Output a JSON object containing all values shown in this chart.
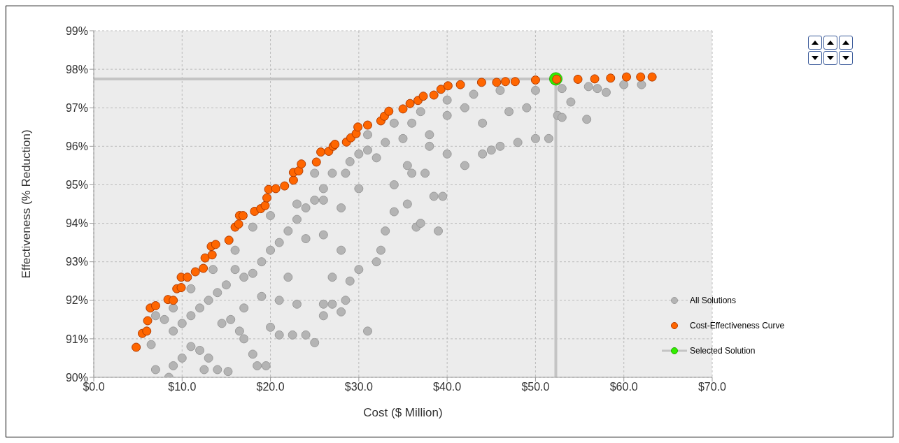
{
  "chart_data": {
    "type": "scatter",
    "xlabel": "Cost ($ Million)",
    "ylabel": "Effectiveness (% Reduction)",
    "xlim": [
      0,
      70
    ],
    "xticks": [
      {
        "value": 0,
        "label": "$0.0"
      },
      {
        "value": 10,
        "label": "$10.0"
      },
      {
        "value": 20,
        "label": "$20.0"
      },
      {
        "value": 30,
        "label": "$30.0"
      },
      {
        "value": 40,
        "label": "$40.0"
      },
      {
        "value": 50,
        "label": "$50.0"
      },
      {
        "value": 60,
        "label": "$60.0"
      },
      {
        "value": 70,
        "label": "$70.0"
      }
    ],
    "ylim": [
      90,
      99
    ],
    "yticks": [
      {
        "value": 90,
        "label": "90%"
      },
      {
        "value": 91,
        "label": "91%"
      },
      {
        "value": 92,
        "label": "92%"
      },
      {
        "value": 93,
        "label": "93%"
      },
      {
        "value": 94,
        "label": "94%"
      },
      {
        "value": 95,
        "label": "95%"
      },
      {
        "value": 96,
        "label": "96%"
      },
      {
        "value": 97,
        "label": "97%"
      },
      {
        "value": 98,
        "label": "98%"
      },
      {
        "value": 99,
        "label": "99%"
      }
    ],
    "grid": true,
    "legend": "bottom right",
    "marker": "circle",
    "series": [
      {
        "name": "All Solutions",
        "color": "#b4b4b4",
        "x": [
          7,
          8.5,
          9,
          10,
          11,
          12,
          12.5,
          13,
          14,
          15.2,
          14.5,
          15.5,
          16.5,
          17,
          18,
          18.5,
          19.5,
          20,
          21,
          22.5,
          24,
          25,
          26,
          27,
          28,
          31,
          28.5,
          29,
          28,
          30,
          32,
          32.5,
          33,
          34,
          35.5,
          36.5,
          37,
          39,
          39.5,
          38.5,
          37.5,
          36,
          34,
          35.5,
          38,
          40,
          42,
          44,
          45,
          46,
          48,
          50,
          51.5,
          52.5,
          53,
          55.8,
          54,
          49,
          47,
          44,
          42,
          40,
          38,
          36,
          35,
          33,
          31,
          30,
          29,
          27,
          26,
          25,
          24,
          23,
          22,
          21,
          20,
          19,
          18,
          17,
          16,
          15,
          14,
          13,
          12,
          11,
          10,
          9,
          8,
          7,
          6.5,
          22,
          24,
          26,
          27,
          26,
          23,
          21,
          19,
          17,
          25,
          28,
          30,
          32,
          57,
          60,
          62,
          58,
          56,
          53,
          50,
          46,
          43,
          40,
          37,
          34,
          31,
          28.5,
          26,
          23,
          20,
          18,
          16,
          13.5,
          11,
          9
        ],
        "values": [
          90.2,
          90.0,
          90.3,
          90.5,
          90.8,
          90.7,
          90.2,
          90.5,
          90.2,
          90.15,
          91.4,
          91.5,
          91.2,
          91.0,
          90.6,
          90.3,
          90.3,
          91.3,
          91.1,
          91.1,
          91.1,
          90.9,
          91.6,
          91.9,
          91.7,
          91.2,
          92.0,
          92.5,
          93.3,
          92.8,
          93.0,
          93.3,
          93.8,
          94.3,
          94.5,
          93.9,
          94.0,
          93.8,
          94.7,
          94.7,
          95.3,
          95.3,
          95.0,
          95.5,
          96.3,
          95.8,
          95.5,
          95.8,
          95.9,
          96.0,
          96.1,
          96.2,
          96.2,
          96.8,
          96.75,
          96.7,
          97.15,
          97.0,
          96.9,
          96.6,
          97.0,
          96.8,
          96.0,
          96.6,
          96.2,
          96.1,
          96.3,
          95.8,
          95.6,
          95.3,
          94.9,
          94.6,
          94.4,
          94.1,
          93.8,
          93.5,
          93.3,
          93.0,
          92.7,
          92.6,
          92.8,
          92.4,
          92.2,
          92.0,
          91.8,
          91.6,
          91.4,
          91.2,
          91.5,
          91.6,
          90.85,
          92.6,
          93.6,
          93.7,
          92.6,
          91.9,
          91.9,
          92.0,
          92.1,
          91.8,
          95.3,
          94.4,
          94.9,
          95.7,
          97.5,
          97.6,
          97.6,
          97.4,
          97.55,
          97.5,
          97.45,
          97.45,
          97.35,
          97.2,
          96.9,
          96.6,
          95.9,
          95.3,
          94.6,
          94.5,
          94.2,
          93.9,
          93.3,
          92.8,
          92.3,
          91.8
        ]
      },
      {
        "name": "Cost-Effectiveness Curve",
        "color": "#ff6600",
        "x": [
          4.8,
          5.5,
          6.0,
          6.1,
          6.4,
          7.0,
          8.4,
          9.0,
          9.4,
          9.9,
          9.9,
          10.6,
          11.5,
          12.4,
          12.6,
          13.4,
          13.3,
          13.8,
          15.3,
          16.0,
          16.4,
          16.5,
          16.9,
          18.2,
          18.9,
          19.4,
          19.6,
          19.8,
          20.6,
          21.6,
          22.6,
          22.6,
          23.2,
          23.5,
          25.2,
          25.7,
          26.6,
          27.1,
          27.3,
          28.6,
          29.1,
          29.7,
          29.9,
          31.0,
          32.5,
          32.9,
          33.4,
          35.0,
          35.8,
          36.7,
          37.3,
          38.5,
          39.3,
          40.1,
          41.5,
          43.9,
          45.6,
          46.6,
          47.7,
          50.0,
          52.4,
          54.8,
          56.7,
          58.5,
          60.3,
          61.9,
          63.2
        ],
        "values": [
          90.78,
          91.14,
          91.2,
          91.47,
          91.8,
          91.86,
          92.02,
          92.0,
          92.3,
          92.33,
          92.6,
          92.6,
          92.74,
          92.83,
          93.1,
          93.18,
          93.4,
          93.45,
          93.56,
          93.9,
          93.98,
          94.2,
          94.2,
          94.31,
          94.38,
          94.46,
          94.66,
          94.88,
          94.9,
          94.97,
          95.12,
          95.32,
          95.36,
          95.54,
          95.59,
          95.85,
          95.87,
          96.0,
          96.05,
          96.11,
          96.22,
          96.33,
          96.5,
          96.55,
          96.66,
          96.78,
          96.91,
          96.97,
          97.11,
          97.19,
          97.3,
          97.33,
          97.48,
          97.57,
          97.6,
          97.66,
          97.66,
          97.68,
          97.68,
          97.72,
          97.74,
          97.74,
          97.75,
          97.77,
          97.8,
          97.8,
          97.8
        ]
      },
      {
        "name": "Selected Solution",
        "color": "#33ee00",
        "x": [
          52.3
        ],
        "values": [
          97.75
        ]
      }
    ],
    "ref_lines": [
      {
        "axis": "y",
        "value": 97.75,
        "color": "#c4c4c4"
      },
      {
        "axis": "x",
        "value": 52.3,
        "color": "#c4c4c4"
      }
    ]
  }
}
